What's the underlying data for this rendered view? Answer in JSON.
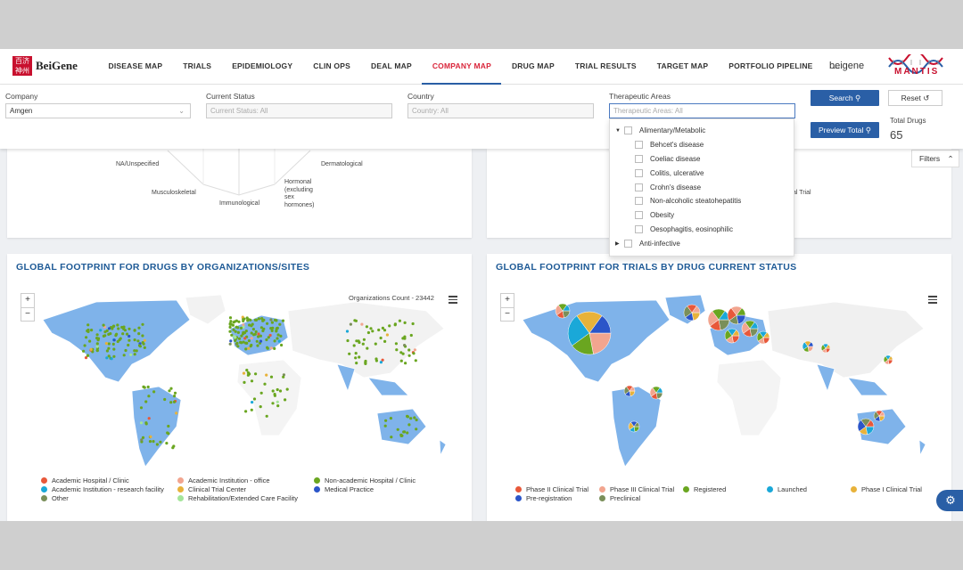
{
  "brand": {
    "logo_text": "BeiGene",
    "user": "beigene",
    "partner": "MANTIS"
  },
  "nav": {
    "items": [
      {
        "label": "DISEASE MAP"
      },
      {
        "label": "TRIALS"
      },
      {
        "label": "EPIDEMIOLOGY"
      },
      {
        "label": "CLIN OPS"
      },
      {
        "label": "DEAL MAP"
      },
      {
        "label": "COMPANY MAP",
        "active": true
      },
      {
        "label": "DRUG MAP"
      },
      {
        "label": "TRIAL RESULTS"
      },
      {
        "label": "TARGET MAP"
      },
      {
        "label": "PORTFOLIO PIPELINE"
      },
      {
        "label": "..."
      }
    ]
  },
  "filters": {
    "company": {
      "label": "Company",
      "value": "Amgen"
    },
    "status": {
      "label": "Current Status",
      "placeholder": "Current Status: All"
    },
    "country": {
      "label": "Country",
      "placeholder": "Country: All"
    },
    "therapeutic": {
      "label": "Therapeutic Areas",
      "placeholder": "Therapeutic Areas: All"
    },
    "search_label": "Search",
    "reset_label": "Reset",
    "preview_label": "Preview Total",
    "total_label": "Total Drugs",
    "total_value": "65",
    "filters_tab": "Filters"
  },
  "therapeutic_dropdown": {
    "groups": [
      {
        "label": "Alimentary/Metabolic",
        "expanded": true,
        "children": [
          "Behcet's disease",
          "Coeliac disease",
          "Colitis, ulcerative",
          "Crohn's disease",
          "Non-alcoholic steatohepatitis",
          "Obesity",
          "Oesophagitis, eosinophilic"
        ]
      },
      {
        "label": "Anti-infective",
        "expanded": false,
        "children": []
      }
    ]
  },
  "top_left_card": {
    "radar_labels": [
      "NA/Unspecified",
      "Dermatological",
      "Musculoskeletal",
      "Hormonal (excluding sex hormones)",
      "Immunological"
    ]
  },
  "top_right_card": {
    "fragment_text": "nical Trial"
  },
  "map_sites": {
    "title": "GLOBAL FOOTPRINT FOR DRUGS BY ORGANIZATIONS/SITES",
    "count_label": "Organizations Count - 23442",
    "legend": [
      {
        "label": "Academic Hospital / Clinic",
        "color": "#e8583a"
      },
      {
        "label": "Academic Institution - office",
        "color": "#f2a58f"
      },
      {
        "label": "Non-academic Hospital / Clinic",
        "color": "#6aa620"
      },
      {
        "label": "Academic Institution - research facility",
        "color": "#1aa8d8"
      },
      {
        "label": "Clinical Trial Center",
        "color": "#e8b23a"
      },
      {
        "label": "Medical Practice",
        "color": "#2b55c9"
      },
      {
        "label": "Other",
        "color": "#7a8f5a"
      },
      {
        "label": "Rehabilitation/Extended Care Facility",
        "color": "#a4e59a"
      }
    ]
  },
  "map_trials": {
    "title": "GLOBAL FOOTPRINT FOR TRIALS BY DRUG CURRENT STATUS",
    "legend": [
      {
        "label": "Phase II Clinical Trial",
        "color": "#e8583a"
      },
      {
        "label": "Phase III Clinical Trial",
        "color": "#f2a58f"
      },
      {
        "label": "Registered",
        "color": "#6aa620"
      },
      {
        "label": "Launched",
        "color": "#1aa8d8"
      },
      {
        "label": "Phase I Clinical Trial",
        "color": "#e8b23a"
      },
      {
        "label": "Pre-registration",
        "color": "#2b55c9"
      },
      {
        "label": "Preclinical",
        "color": "#7a8f5a"
      }
    ]
  },
  "zoom": {
    "in": "+",
    "out": "−"
  },
  "icons": {
    "settings": "gear-icon",
    "search": "search-icon",
    "reset": "reset-icon",
    "menu": "hamburger-icon"
  }
}
